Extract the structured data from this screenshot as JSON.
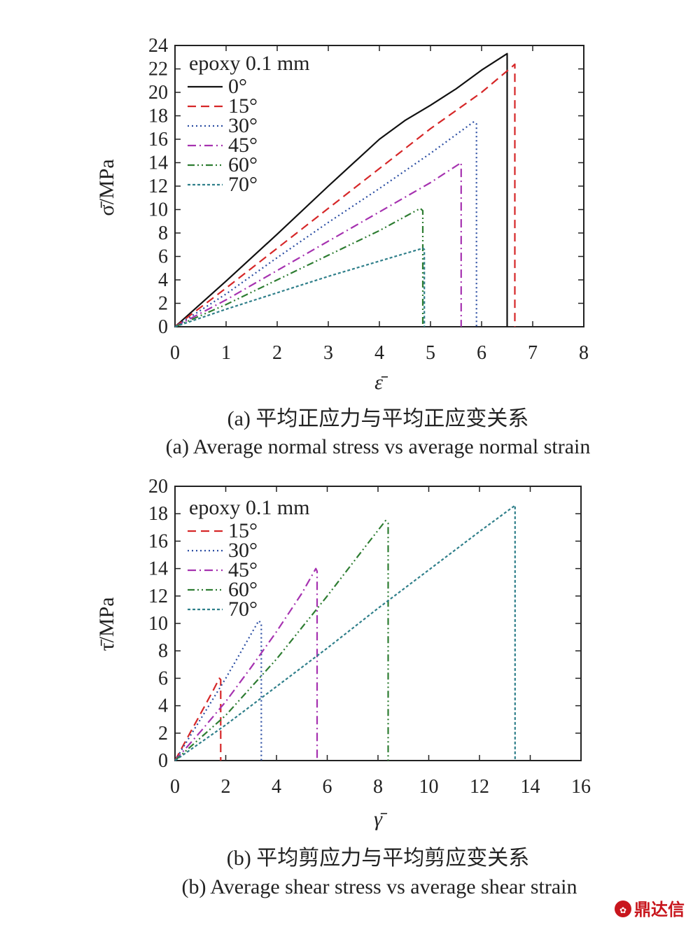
{
  "chart_data": [
    {
      "type": "line",
      "panel": "a",
      "legend_title": "epoxy 0.1 mm",
      "legend_position": "top-left",
      "ylabel": "σ̄/MPa",
      "xlabel": "ε̄",
      "xlim": [
        0,
        8
      ],
      "ylim": [
        0,
        24
      ],
      "xticks": [
        "0",
        "1",
        "2",
        "3",
        "4",
        "5",
        "6",
        "7",
        "8"
      ],
      "yticks": [
        "0",
        "2",
        "4",
        "6",
        "8",
        "10",
        "12",
        "14",
        "16",
        "18",
        "20",
        "22",
        "24"
      ],
      "caption_cn": "(a) 平均正应力与平均正应变关系",
      "caption_en": "(a) Average normal stress vs average normal strain",
      "series": [
        {
          "name": "0°",
          "dash": "solid",
          "color": "#111111",
          "x": [
            0,
            1,
            2,
            3,
            4,
            4.5,
            5,
            5.5,
            6,
            6.5,
            6.5
          ],
          "y": [
            0,
            3.9,
            7.9,
            12.0,
            16.0,
            17.6,
            18.9,
            20.3,
            21.9,
            23.3,
            0
          ]
        },
        {
          "name": "15°",
          "dash": "dashed",
          "color": "#d62728",
          "x": [
            0,
            1,
            2,
            3,
            4,
            5,
            6,
            6.6,
            6.65,
            6.65
          ],
          "y": [
            0,
            3.3,
            6.7,
            10.1,
            13.5,
            16.9,
            20.0,
            22.2,
            22.4,
            0
          ]
        },
        {
          "name": "30°",
          "dash": "dotted",
          "color": "#2b4ea3",
          "x": [
            0,
            1,
            2,
            3,
            4,
            5,
            5.85,
            5.9,
            5.9
          ],
          "y": [
            0,
            2.8,
            5.9,
            8.9,
            11.8,
            14.8,
            17.5,
            17.3,
            0
          ]
        },
        {
          "name": "45°",
          "dash": "dashdot",
          "color": "#a632b0",
          "x": [
            0,
            1,
            2,
            3,
            4,
            5,
            5.6,
            5.6
          ],
          "y": [
            0,
            2.3,
            4.8,
            7.3,
            9.8,
            12.3,
            14.0,
            0
          ]
        },
        {
          "name": "60°",
          "dash": "dashdotdot",
          "color": "#2e7d32",
          "x": [
            0,
            1,
            2,
            3,
            4,
            4.8,
            4.85,
            4.85
          ],
          "y": [
            0,
            1.9,
            4.0,
            6.1,
            8.2,
            10.1,
            9.9,
            0
          ]
        },
        {
          "name": "70°",
          "dash": "shortdash",
          "color": "#2f7f8a",
          "x": [
            0,
            1,
            2,
            3,
            4,
            4.85,
            4.88,
            4.88
          ],
          "y": [
            0,
            1.5,
            2.9,
            4.3,
            5.6,
            6.7,
            6.6,
            0
          ]
        }
      ]
    },
    {
      "type": "line",
      "panel": "b",
      "legend_title": "epoxy 0.1 mm",
      "legend_position": "top-left",
      "ylabel": "τ̄/MPa",
      "xlabel": "γ̄",
      "xlim": [
        0,
        16
      ],
      "ylim": [
        0,
        20
      ],
      "xticks": [
        "0",
        "2",
        "4",
        "6",
        "8",
        "10",
        "12",
        "14",
        "16"
      ],
      "yticks": [
        "0",
        "2",
        "4",
        "6",
        "8",
        "10",
        "12",
        "14",
        "16",
        "18",
        "20"
      ],
      "caption_cn": "(b) 平均剪应力与平均剪应变关系",
      "caption_en": "(b) Average shear stress vs average shear strain",
      "series": [
        {
          "name": "15°",
          "dash": "dashed",
          "color": "#d62728",
          "x": [
            0,
            0.5,
            1.0,
            1.5,
            1.75,
            1.8,
            1.8
          ],
          "y": [
            0,
            1.7,
            3.4,
            5.1,
            6.0,
            5.9,
            0
          ]
        },
        {
          "name": "30°",
          "dash": "dotted",
          "color": "#2b4ea3",
          "x": [
            0,
            1,
            2,
            2.5,
            3.3,
            3.4,
            3.4
          ],
          "y": [
            0,
            3.0,
            6.0,
            7.6,
            10.2,
            10.0,
            0
          ]
        },
        {
          "name": "45°",
          "dash": "dashdot",
          "color": "#a632b0",
          "x": [
            0,
            1,
            2,
            3,
            4,
            5,
            5.55,
            5.6,
            5.6
          ],
          "y": [
            0,
            2.1,
            4.3,
            6.8,
            9.4,
            12.2,
            14.0,
            13.8,
            0
          ]
        },
        {
          "name": "60°",
          "dash": "dashdotdot",
          "color": "#2e7d32",
          "x": [
            0,
            2,
            4,
            6,
            7.5,
            8.3,
            8.4,
            8.4
          ],
          "y": [
            0,
            3.3,
            7.4,
            12.0,
            15.6,
            17.5,
            17.3,
            0
          ]
        },
        {
          "name": "70°",
          "dash": "shortdash",
          "color": "#2f7f8a",
          "x": [
            0,
            2,
            4,
            6,
            8,
            10,
            12,
            13.4,
            13.4
          ],
          "y": [
            0,
            2.6,
            5.4,
            8.2,
            11.1,
            13.9,
            16.7,
            18.6,
            0
          ]
        }
      ]
    }
  ],
  "watermark": {
    "text": "鼎达信",
    "color": "#c8161d"
  }
}
